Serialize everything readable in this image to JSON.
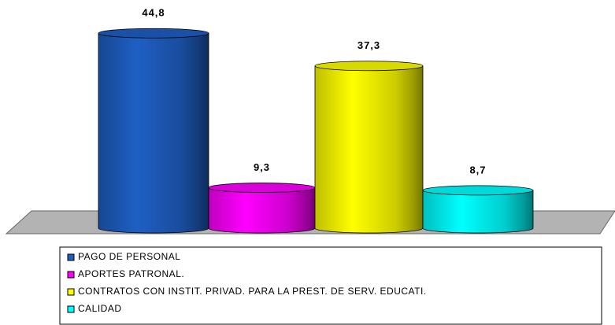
{
  "chart_data": {
    "type": "bar",
    "series": [
      {
        "name": "PAGO DE PERSONAL",
        "color": "#1f5fc4",
        "values": [
          44.8
        ],
        "value_labels": [
          "44,8"
        ]
      },
      {
        "name": "APORTES PATRONAL.",
        "color": "#ff00ff",
        "values": [
          9.3
        ],
        "value_labels": [
          "9,3"
        ]
      },
      {
        "name": "CONTRATOS CON INSTIT. PRIVAD. PARA LA PREST. DE SERV. EDUCATI.",
        "color": "#ffff00",
        "values": [
          37.3
        ],
        "value_labels": [
          "37,3"
        ]
      },
      {
        "name": "CALIDAD",
        "color": "#00ffff",
        "values": [
          8.7
        ],
        "value_labels": [
          "8,7"
        ]
      }
    ]
  }
}
